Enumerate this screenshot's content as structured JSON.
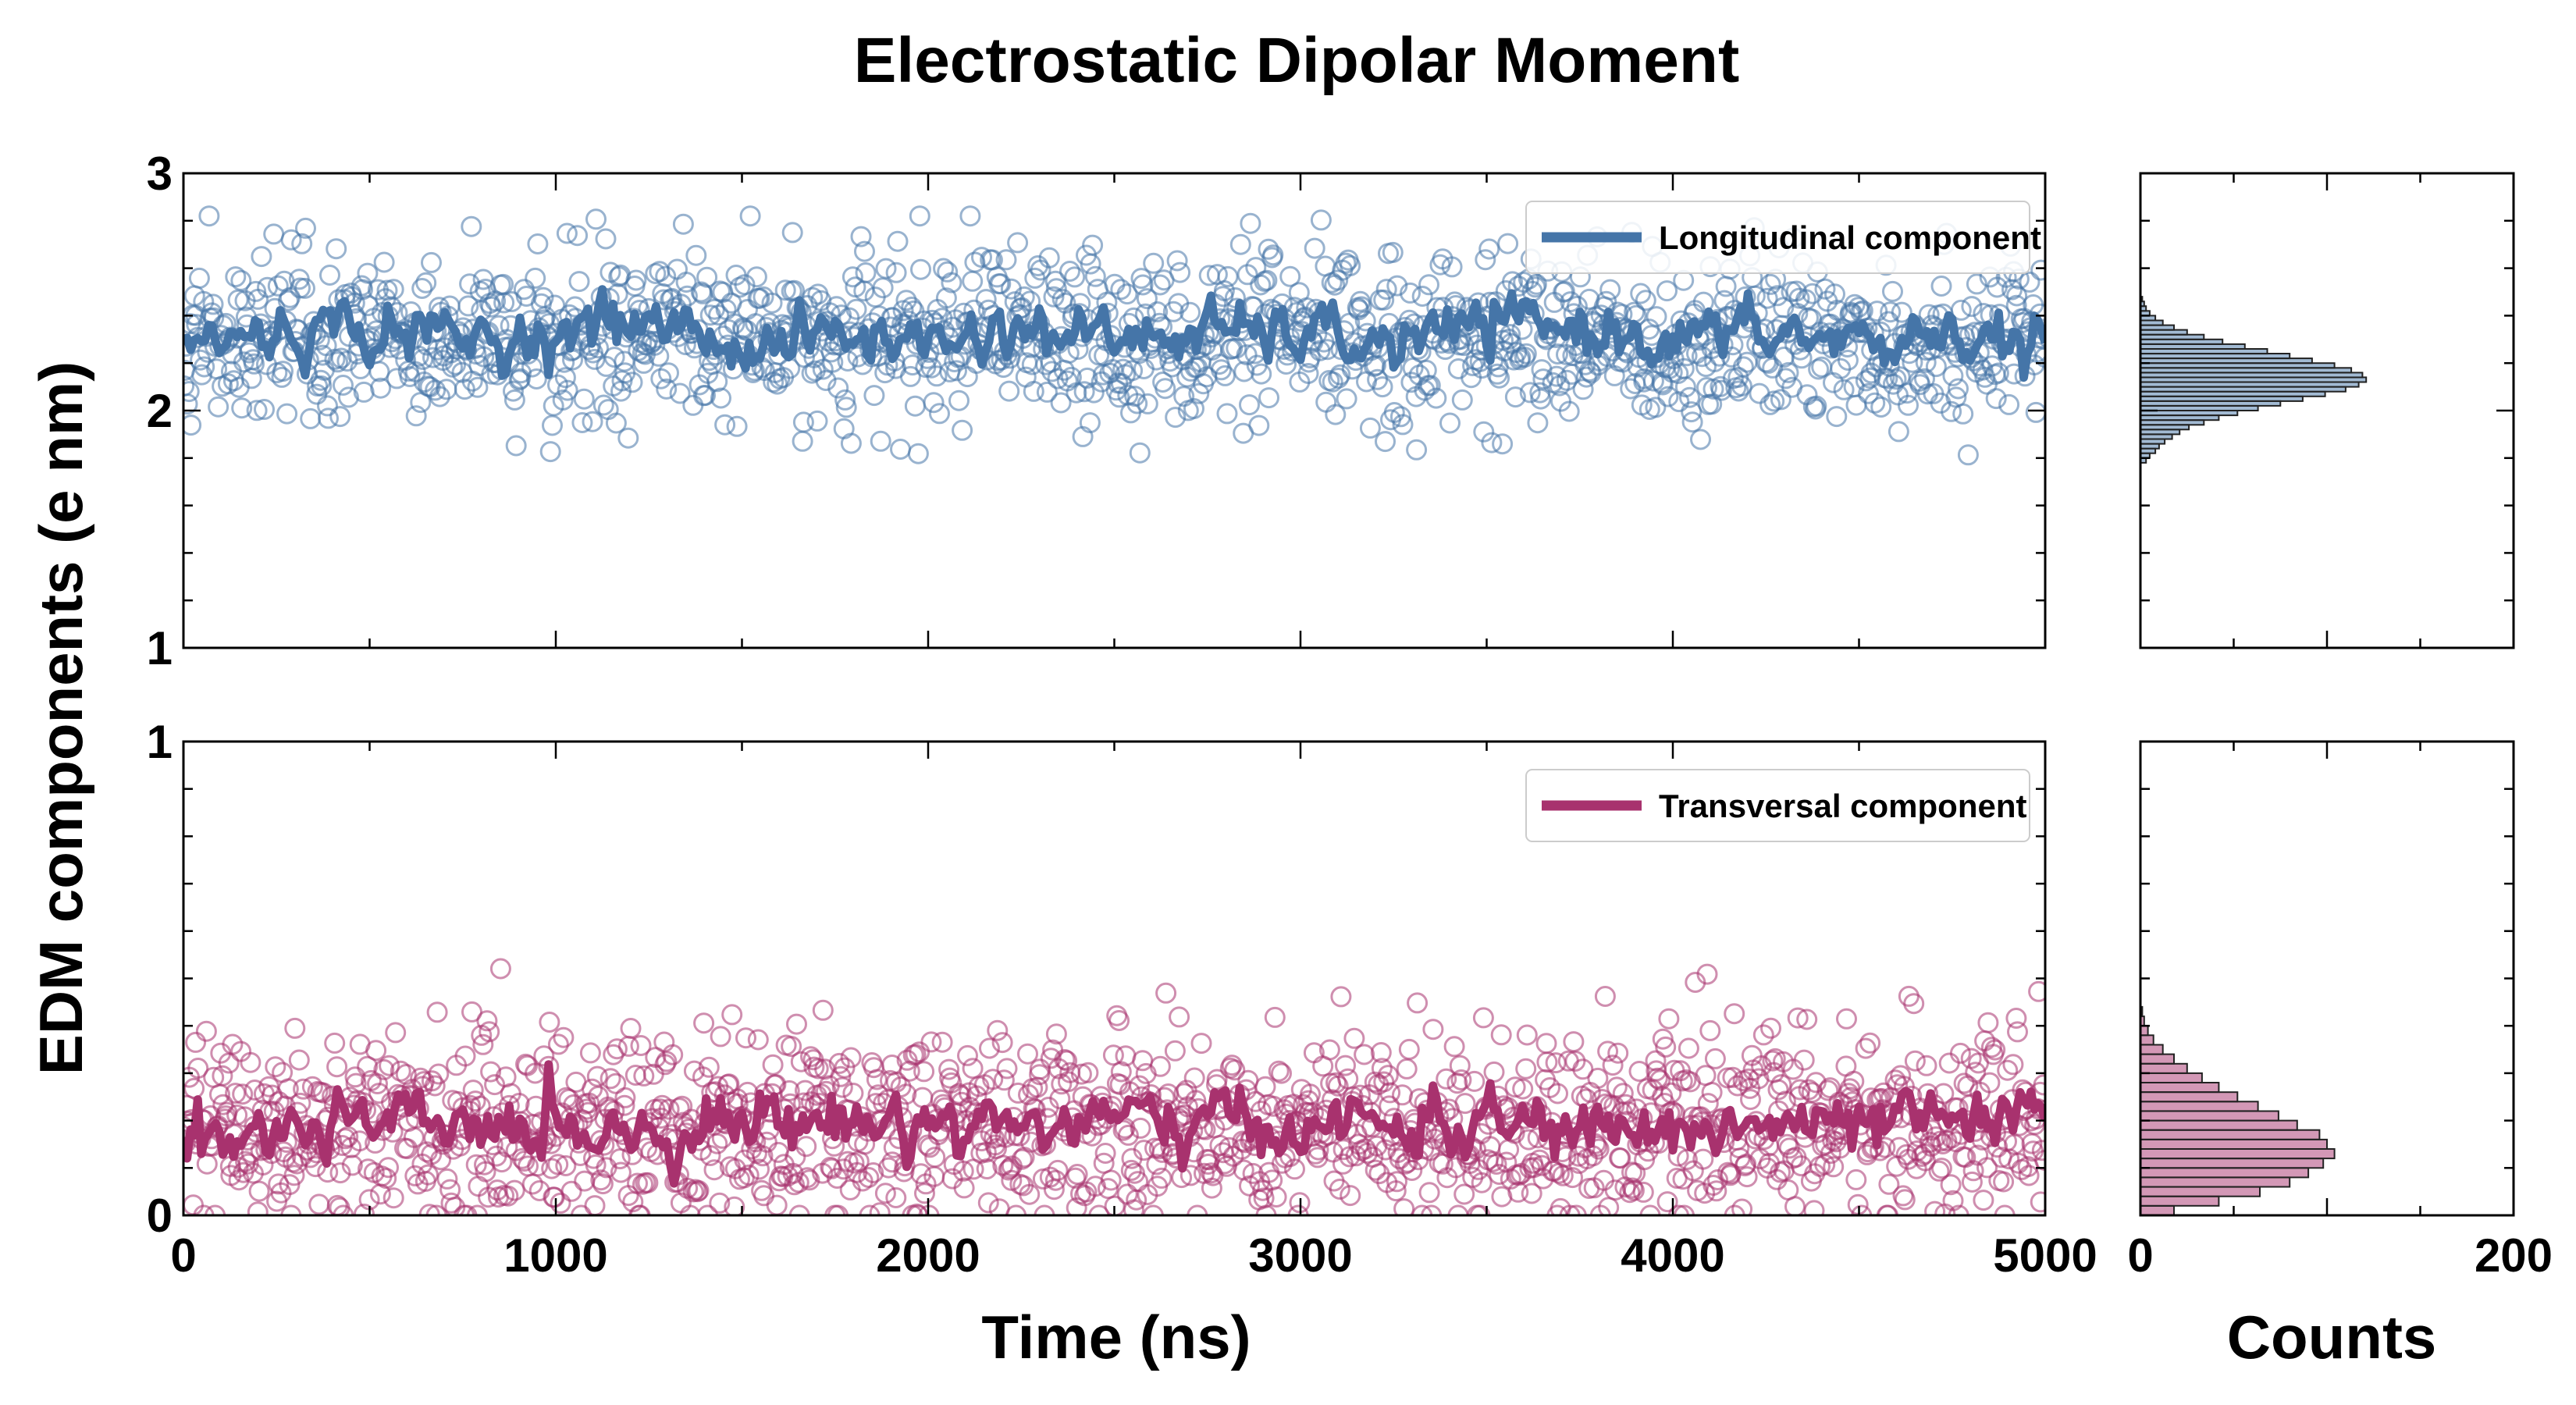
{
  "chart_data": {
    "type": "scatter",
    "title": "Electrostatic Dipolar Moment",
    "ylabel": "EDM components (e nm)",
    "xlabel": "Time (ns)",
    "hist_xlabel": "Counts",
    "xlim": [
      0,
      5000
    ],
    "x_ticks": [
      "0",
      "1000",
      "2000",
      "3000",
      "4000",
      "5000"
    ],
    "hist_xlim": [
      0,
      200
    ],
    "hist_x_ticks": [
      "0",
      "200"
    ],
    "panels": [
      {
        "id": "longitudinal",
        "legend": "Longitudinal component",
        "color": "#4575a8",
        "ylim": [
          1,
          3
        ],
        "y_ticks": [
          "1",
          "2",
          "3"
        ],
        "scatter_mean": 2.3,
        "scatter_std": 0.18,
        "scatter_range": [
          1.8,
          2.82
        ],
        "running_mean": [
          {
            "x": 0,
            "y": 2.28
          },
          {
            "x": 250,
            "y": 2.33
          },
          {
            "x": 500,
            "y": 2.35
          },
          {
            "x": 750,
            "y": 2.3
          },
          {
            "x": 1000,
            "y": 2.33
          },
          {
            "x": 1250,
            "y": 2.38
          },
          {
            "x": 1500,
            "y": 2.27
          },
          {
            "x": 1750,
            "y": 2.32
          },
          {
            "x": 2000,
            "y": 2.29
          },
          {
            "x": 2250,
            "y": 2.35
          },
          {
            "x": 2500,
            "y": 2.3
          },
          {
            "x": 2750,
            "y": 2.33
          },
          {
            "x": 3000,
            "y": 2.32
          },
          {
            "x": 3250,
            "y": 2.28
          },
          {
            "x": 3500,
            "y": 2.36
          },
          {
            "x": 3750,
            "y": 2.35
          },
          {
            "x": 4000,
            "y": 2.3
          },
          {
            "x": 4250,
            "y": 2.33
          },
          {
            "x": 4500,
            "y": 2.28
          },
          {
            "x": 4750,
            "y": 2.32
          },
          {
            "x": 5000,
            "y": 2.27
          }
        ],
        "histogram": {
          "bin_start": 1.78,
          "bin_width": 0.02,
          "counts": [
            3,
            5,
            8,
            10,
            13,
            17,
            21,
            26,
            34,
            42,
            52,
            63,
            75,
            87,
            99,
            110,
            117,
            121,
            119,
            113,
            104,
            92,
            80,
            68,
            56,
            44,
            34,
            25,
            18,
            12,
            8,
            5,
            3,
            2,
            1
          ]
        }
      },
      {
        "id": "transversal",
        "legend": "Transversal component",
        "color": "#a8326e",
        "ylim": [
          0,
          1
        ],
        "y_ticks": [
          "0",
          "1"
        ],
        "scatter_mean": 0.19,
        "scatter_std": 0.1,
        "scatter_range": [
          0.0,
          0.54
        ],
        "running_mean": [
          {
            "x": 0,
            "y": 0.18
          },
          {
            "x": 250,
            "y": 0.17
          },
          {
            "x": 500,
            "y": 0.19
          },
          {
            "x": 750,
            "y": 0.18
          },
          {
            "x": 1000,
            "y": 0.19
          },
          {
            "x": 1250,
            "y": 0.18
          },
          {
            "x": 1500,
            "y": 0.2
          },
          {
            "x": 1750,
            "y": 0.2
          },
          {
            "x": 2000,
            "y": 0.2
          },
          {
            "x": 2250,
            "y": 0.19
          },
          {
            "x": 2500,
            "y": 0.2
          },
          {
            "x": 2750,
            "y": 0.19
          },
          {
            "x": 3000,
            "y": 0.19
          },
          {
            "x": 3250,
            "y": 0.19
          },
          {
            "x": 3500,
            "y": 0.19
          },
          {
            "x": 3750,
            "y": 0.18
          },
          {
            "x": 4000,
            "y": 0.18
          },
          {
            "x": 4250,
            "y": 0.19
          },
          {
            "x": 4500,
            "y": 0.18
          },
          {
            "x": 4750,
            "y": 0.2
          },
          {
            "x": 5000,
            "y": 0.18
          }
        ],
        "histogram": {
          "bin_start": 0.0,
          "bin_width": 0.02,
          "counts": [
            18,
            42,
            64,
            80,
            90,
            98,
            104,
            100,
            96,
            84,
            74,
            63,
            52,
            42,
            33,
            25,
            18,
            12,
            7,
            4,
            2,
            1
          ]
        }
      }
    ]
  }
}
